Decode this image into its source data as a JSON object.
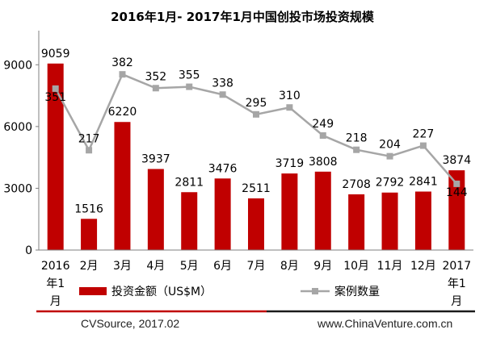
{
  "chart_data": {
    "type": "bar",
    "title": "2016年1月- 2017年1月中国创投市场投资规模",
    "categories": [
      "2016年1月",
      "2月",
      "3月",
      "4月",
      "5月",
      "6月",
      "7月",
      "8月",
      "9月",
      "10月",
      "11月",
      "12月",
      "2017年1月"
    ],
    "category_label_lines": [
      [
        "2016",
        "年1",
        "月"
      ],
      [
        "2月"
      ],
      [
        "3月"
      ],
      [
        "4月"
      ],
      [
        "5月"
      ],
      [
        "6月"
      ],
      [
        "7月"
      ],
      [
        "8月"
      ],
      [
        "9月"
      ],
      [
        "10月"
      ],
      [
        "11月"
      ],
      [
        "12月"
      ],
      [
        "2017",
        "年1",
        "月"
      ]
    ],
    "series": [
      {
        "name": "投资金额（US$M）",
        "type": "bar",
        "color": "#c00000",
        "values": [
          9059,
          1516,
          6220,
          3937,
          2811,
          3476,
          2511,
          3719,
          3808,
          2708,
          2792,
          2841,
          3874
        ]
      },
      {
        "name": "案例数量",
        "type": "line",
        "color": "#a6a6a6",
        "values": [
          351,
          217,
          382,
          352,
          355,
          338,
          295,
          310,
          249,
          218,
          204,
          227,
          144
        ]
      }
    ],
    "ylim": [
      0,
      10500
    ],
    "yticks": [
      0,
      3000,
      6000,
      9000
    ],
    "y2lim": [
      0,
      470
    ],
    "grid": false,
    "legend": "bottom"
  },
  "footer": {
    "source": "CVSource, 2017.02",
    "website": "www.ChinaVenture.com.cn"
  }
}
